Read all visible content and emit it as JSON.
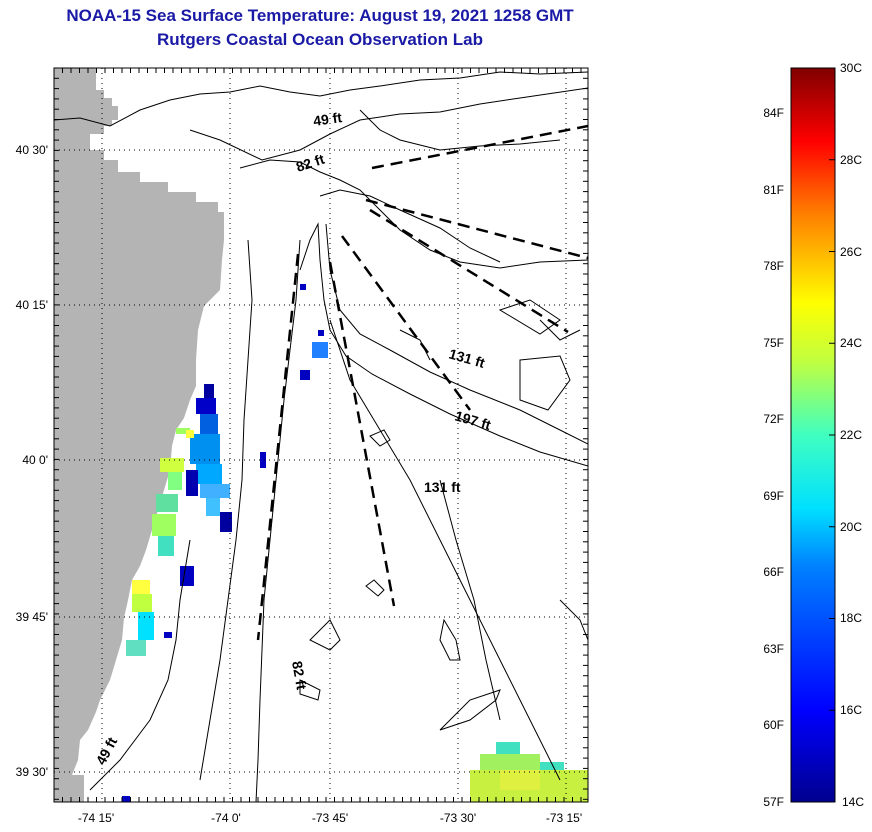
{
  "title": {
    "line1": "NOAA-15 Sea Surface Temperature:  August 19, 2021 1258 GMT",
    "line2": "Rutgers Coastal Ocean Observation Lab"
  },
  "map": {
    "lat_labels": [
      "40 30'",
      "40 15'",
      "40 0'",
      "39 45'",
      "39 30'"
    ],
    "lon_labels": [
      "-74 15'",
      "-74 0'",
      "-73 45'",
      "-73 30'",
      "-73 15'"
    ],
    "depth_labels": [
      "49 ft",
      "82 ft",
      "131 ft",
      "197 ft",
      "131 ft",
      "82 ft",
      "49 ft"
    ],
    "colors": {
      "land": "#b4b4b4",
      "ocean": "#ffffff",
      "contour": "#000000",
      "title": "#1a1aa6"
    }
  },
  "colorbar": {
    "celsius_labels": [
      "30C",
      "28C",
      "26C",
      "24C",
      "22C",
      "20C",
      "18C",
      "16C",
      "14C"
    ],
    "fahrenheit_labels": [
      "84F",
      "81F",
      "78F",
      "75F",
      "72F",
      "69F",
      "66F",
      "63F",
      "60F",
      "57F"
    ],
    "celsius_range": [
      14,
      30
    ],
    "colormap": [
      "#00008f",
      "#0000ff",
      "#0080ff",
      "#00ffff",
      "#80ff80",
      "#ffff00",
      "#ff8000",
      "#ff0000",
      "#800000"
    ]
  }
}
